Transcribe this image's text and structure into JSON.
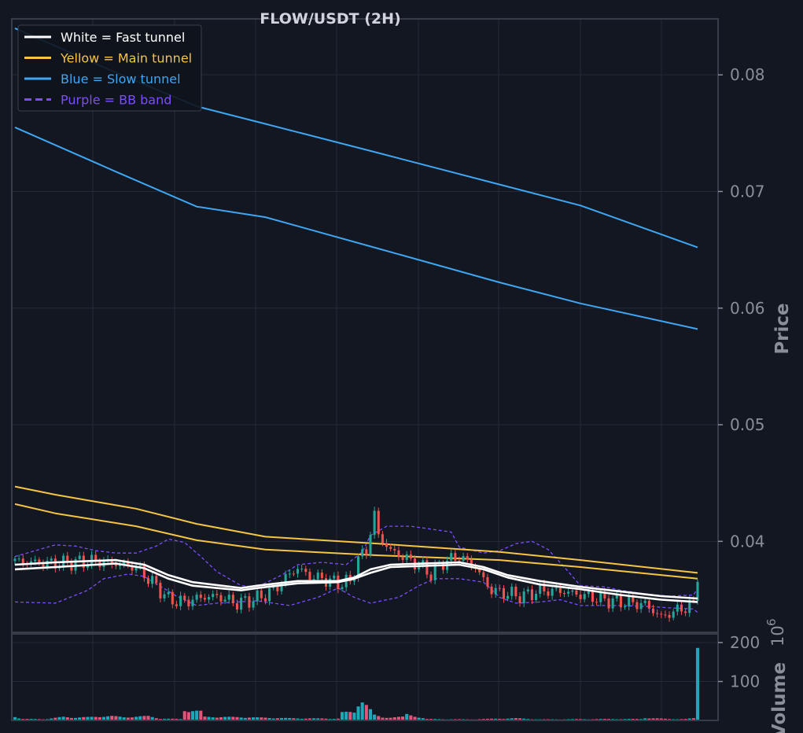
{
  "chart_data": {
    "type": "candlestick",
    "title": "FLOW/USDT (2H)",
    "price_axis": {
      "label": "Price",
      "ticks": [
        0.04,
        0.05,
        0.06,
        0.07,
        0.08
      ],
      "tick_labels": [
        "0.04",
        "0.05",
        "0.06",
        "0.07",
        "0.08"
      ],
      "ylim": [
        0.0322,
        0.0848
      ]
    },
    "volume_axis": {
      "label": "Volume",
      "multiplier_label": "10",
      "multiplier_exp": "6",
      "ticks": [
        100,
        200
      ],
      "tick_labels": [
        "100",
        "200"
      ],
      "ylim": [
        0,
        200
      ]
    },
    "legend": {
      "placement": "top-left",
      "entries": [
        {
          "label": "White = Fast tunnel",
          "color": "#ffffff",
          "dash": false
        },
        {
          "label": "Yellow = Main tunnel",
          "color": "#f5c542",
          "dash": false
        },
        {
          "label": "Blue = Slow tunnel",
          "color": "#3ea6f2",
          "dash": false
        },
        {
          "label": "Purple = BB band",
          "color": "#7c4dff",
          "dash": true
        }
      ]
    },
    "grid": true,
    "colors": {
      "background": "#131722",
      "up": "#26a69a",
      "down": "#ef5350",
      "volume": "#1ea7b8",
      "axis": "#8a8e99"
    },
    "n_bars": 170,
    "close_anchors": [
      [
        0,
        0.0383
      ],
      [
        10,
        0.0381
      ],
      [
        20,
        0.0383
      ],
      [
        27,
        0.038
      ],
      [
        30,
        0.0378
      ],
      [
        33,
        0.0368
      ],
      [
        35,
        0.0362
      ],
      [
        38,
        0.035
      ],
      [
        42,
        0.0348
      ],
      [
        46,
        0.0352
      ],
      [
        50,
        0.0353
      ],
      [
        55,
        0.0347
      ],
      [
        60,
        0.0351
      ],
      [
        64,
        0.0358
      ],
      [
        68,
        0.0372
      ],
      [
        70,
        0.0377
      ],
      [
        73,
        0.037
      ],
      [
        76,
        0.0368
      ],
      [
        80,
        0.0364
      ],
      [
        83,
        0.0365
      ],
      [
        85,
        0.0385
      ],
      [
        87,
        0.0392
      ],
      [
        88,
        0.0408
      ],
      [
        89,
        0.0423
      ],
      [
        90,
        0.0405
      ],
      [
        93,
        0.0392
      ],
      [
        97,
        0.0385
      ],
      [
        100,
        0.038
      ],
      [
        103,
        0.0372
      ],
      [
        106,
        0.0382
      ],
      [
        110,
        0.0387
      ],
      [
        114,
        0.0378
      ],
      [
        116,
        0.0367
      ],
      [
        118,
        0.0358
      ],
      [
        122,
        0.0355
      ],
      [
        126,
        0.0353
      ],
      [
        130,
        0.0358
      ],
      [
        136,
        0.0357
      ],
      [
        140,
        0.0354
      ],
      [
        146,
        0.035
      ],
      [
        150,
        0.0348
      ],
      [
        156,
        0.0346
      ],
      [
        160,
        0.0335
      ],
      [
        164,
        0.0341
      ],
      [
        168,
        0.0346
      ],
      [
        169,
        0.0372
      ]
    ],
    "fast_tunnel": [
      [
        [
          0,
          0.0376
        ],
        [
          10,
          0.0378
        ],
        [
          25,
          0.0381
        ],
        [
          32,
          0.0377
        ],
        [
          38,
          0.0368
        ],
        [
          44,
          0.0362
        ],
        [
          56,
          0.0358
        ],
        [
          60,
          0.036
        ],
        [
          70,
          0.0364
        ],
        [
          80,
          0.0365
        ],
        [
          84,
          0.0368
        ],
        [
          88,
          0.0373
        ],
        [
          93,
          0.0378
        ],
        [
          110,
          0.038
        ],
        [
          116,
          0.0376
        ],
        [
          122,
          0.0369
        ],
        [
          130,
          0.0363
        ],
        [
          140,
          0.0359
        ],
        [
          150,
          0.0354
        ],
        [
          160,
          0.035
        ],
        [
          169,
          0.0348
        ]
      ],
      [
        [
          0,
          0.038
        ],
        [
          10,
          0.0382
        ],
        [
          25,
          0.0384
        ],
        [
          32,
          0.038
        ],
        [
          38,
          0.0371
        ],
        [
          44,
          0.0365
        ],
        [
          56,
          0.036
        ],
        [
          60,
          0.0362
        ],
        [
          70,
          0.0366
        ],
        [
          80,
          0.0366
        ],
        [
          84,
          0.0369
        ],
        [
          88,
          0.0376
        ],
        [
          93,
          0.038
        ],
        [
          110,
          0.0382
        ],
        [
          116,
          0.0378
        ],
        [
          122,
          0.0371
        ],
        [
          130,
          0.0366
        ],
        [
          140,
          0.0361
        ],
        [
          150,
          0.0357
        ],
        [
          160,
          0.0353
        ],
        [
          169,
          0.0351
        ]
      ]
    ],
    "main_tunnel": [
      [
        [
          0,
          0.0432
        ],
        [
          10,
          0.0424
        ],
        [
          30,
          0.0413
        ],
        [
          45,
          0.0401
        ],
        [
          62,
          0.0393
        ],
        [
          90,
          0.0388
        ],
        [
          120,
          0.0384
        ],
        [
          140,
          0.0378
        ],
        [
          169,
          0.0368
        ]
      ],
      [
        [
          0,
          0.0447
        ],
        [
          10,
          0.044
        ],
        [
          30,
          0.0428
        ],
        [
          45,
          0.0415
        ],
        [
          62,
          0.0404
        ],
        [
          90,
          0.0398
        ],
        [
          120,
          0.0391
        ],
        [
          140,
          0.0384
        ],
        [
          169,
          0.0373
        ]
      ]
    ],
    "slow_tunnel": [
      [
        [
          0,
          0.0755
        ],
        [
          25,
          0.0717
        ],
        [
          45,
          0.0687
        ],
        [
          62,
          0.0678
        ],
        [
          90,
          0.0651
        ],
        [
          120,
          0.0622
        ],
        [
          140,
          0.0604
        ],
        [
          169,
          0.0582
        ]
      ],
      [
        [
          0,
          0.084
        ],
        [
          25,
          0.0802
        ],
        [
          45,
          0.0773
        ],
        [
          62,
          0.0758
        ],
        [
          90,
          0.0733
        ],
        [
          120,
          0.0706
        ],
        [
          140,
          0.0688
        ],
        [
          169,
          0.0652
        ]
      ]
    ],
    "bb_band": [
      [
        [
          0,
          0.0348
        ],
        [
          10,
          0.0347
        ],
        [
          18,
          0.0358
        ],
        [
          22,
          0.0368
        ],
        [
          28,
          0.0372
        ],
        [
          32,
          0.037
        ],
        [
          40,
          0.0353
        ],
        [
          45,
          0.0345
        ],
        [
          50,
          0.0347
        ],
        [
          60,
          0.0349
        ],
        [
          68,
          0.0345
        ],
        [
          75,
          0.0352
        ],
        [
          80,
          0.036
        ],
        [
          84,
          0.0352
        ],
        [
          88,
          0.0347
        ],
        [
          95,
          0.0352
        ],
        [
          100,
          0.0362
        ],
        [
          104,
          0.0368
        ],
        [
          110,
          0.0368
        ],
        [
          116,
          0.0365
        ],
        [
          120,
          0.0352
        ],
        [
          124,
          0.0347
        ],
        [
          130,
          0.0348
        ],
        [
          135,
          0.035
        ],
        [
          140,
          0.0345
        ],
        [
          150,
          0.0345
        ],
        [
          158,
          0.0344
        ],
        [
          162,
          0.0343
        ],
        [
          168,
          0.0342
        ],
        [
          169,
          0.0339
        ]
      ],
      [
        [
          0,
          0.0387
        ],
        [
          5,
          0.0392
        ],
        [
          10,
          0.0397
        ],
        [
          15,
          0.0396
        ],
        [
          20,
          0.0392
        ],
        [
          25,
          0.039
        ],
        [
          30,
          0.039
        ],
        [
          35,
          0.0396
        ],
        [
          38,
          0.0402
        ],
        [
          42,
          0.0399
        ],
        [
          46,
          0.0387
        ],
        [
          50,
          0.0374
        ],
        [
          56,
          0.0362
        ],
        [
          60,
          0.0361
        ],
        [
          66,
          0.0371
        ],
        [
          70,
          0.038
        ],
        [
          76,
          0.0382
        ],
        [
          82,
          0.038
        ],
        [
          86,
          0.0391
        ],
        [
          88,
          0.0405
        ],
        [
          92,
          0.0413
        ],
        [
          98,
          0.0413
        ],
        [
          104,
          0.041
        ],
        [
          108,
          0.0408
        ],
        [
          110,
          0.0395
        ],
        [
          116,
          0.039
        ],
        [
          120,
          0.0392
        ],
        [
          124,
          0.0398
        ],
        [
          128,
          0.04
        ],
        [
          132,
          0.0393
        ],
        [
          136,
          0.0378
        ],
        [
          140,
          0.0362
        ],
        [
          146,
          0.0361
        ],
        [
          150,
          0.0358
        ],
        [
          156,
          0.0355
        ],
        [
          162,
          0.0353
        ],
        [
          168,
          0.0354
        ],
        [
          169,
          0.036
        ]
      ]
    ],
    "volume": [
      [
        0,
        12
      ],
      [
        1,
        6
      ],
      [
        2,
        4
      ],
      [
        8,
        4
      ],
      [
        12,
        10
      ],
      [
        15,
        8
      ],
      [
        18,
        9
      ],
      [
        21,
        11
      ],
      [
        24,
        12
      ],
      [
        27,
        9
      ],
      [
        33,
        12
      ],
      [
        36,
        5
      ],
      [
        41,
        4
      ],
      [
        42,
        30
      ],
      [
        46,
        25
      ],
      [
        47,
        10
      ],
      [
        57,
        9
      ],
      [
        60,
        8
      ],
      [
        69,
        6
      ],
      [
        80,
        5
      ],
      [
        81,
        22
      ],
      [
        84,
        23
      ],
      [
        85,
        48
      ],
      [
        86,
        59
      ],
      [
        89,
        15
      ],
      [
        91,
        8
      ],
      [
        96,
        10
      ],
      [
        97,
        17
      ],
      [
        99,
        12
      ],
      [
        102,
        4
      ],
      [
        112,
        3
      ],
      [
        116,
        4
      ],
      [
        120,
        5
      ],
      [
        124,
        6
      ],
      [
        130,
        3
      ],
      [
        146,
        4
      ],
      [
        155,
        4
      ],
      [
        156,
        7
      ],
      [
        162,
        4
      ],
      [
        166,
        4
      ],
      [
        168,
        6
      ],
      [
        169,
        205
      ]
    ]
  }
}
